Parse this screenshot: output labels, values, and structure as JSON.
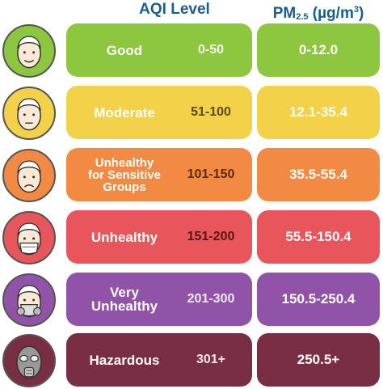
{
  "header": {
    "aqi_label": "AQI Level",
    "pm_label_main": "PM",
    "pm_label_sub": "2.5",
    "pm_label_unit_pre": " (µg/m",
    "pm_label_unit_sup": "3",
    "pm_label_unit_post": ")"
  },
  "rows": [
    {
      "level": "Good",
      "range": "0-50",
      "pm": "0-12.0",
      "face_icon": "happy-face-icon",
      "colors": {
        "pill": "#8dc63f",
        "pm": "#8dc63f",
        "face": "#8dc63f",
        "range_text": "#f4f7ea"
      }
    },
    {
      "level": "Moderate",
      "range": "51-100",
      "pm": "12.1-35.4",
      "face_icon": "neutral-face-icon",
      "colors": {
        "pill": "#f3d24a",
        "pm": "#f3d24a",
        "face": "#f3d24a",
        "range_text": "#5a4a12"
      }
    },
    {
      "level": "Unhealthy\nfor Sensitive\nGroups",
      "range": "101-150",
      "pm": "35.5-55.4",
      "face_icon": "sad-face-icon",
      "colors": {
        "pill": "#f28a43",
        "pm": "#f28a43",
        "face": "#f28a43",
        "range_text": "#5a2a10"
      }
    },
    {
      "level": "Unhealthy",
      "range": "151-200",
      "pm": "55.5-150.4",
      "face_icon": "face-mask-icon",
      "colors": {
        "pill": "#e8565b",
        "pm": "#e8565b",
        "face": "#e8565b",
        "range_text": "#5a1518"
      }
    },
    {
      "level": "Very\nUnhealthy",
      "range": "201-300",
      "pm": "150.5-250.4",
      "face_icon": "respirator-face-icon",
      "colors": {
        "pill": "#9053a8",
        "pm": "#9053a8",
        "face": "#9053a8",
        "range_text": "#f3e9f7"
      }
    },
    {
      "level": "Hazardous",
      "range": "301+",
      "pm": "250.5+",
      "face_icon": "gas-mask-icon",
      "colors": {
        "pill": "#7a2e43",
        "pm": "#7a2e43",
        "face": "#7a2e43",
        "range_text": "#f5e7ea"
      }
    }
  ]
}
